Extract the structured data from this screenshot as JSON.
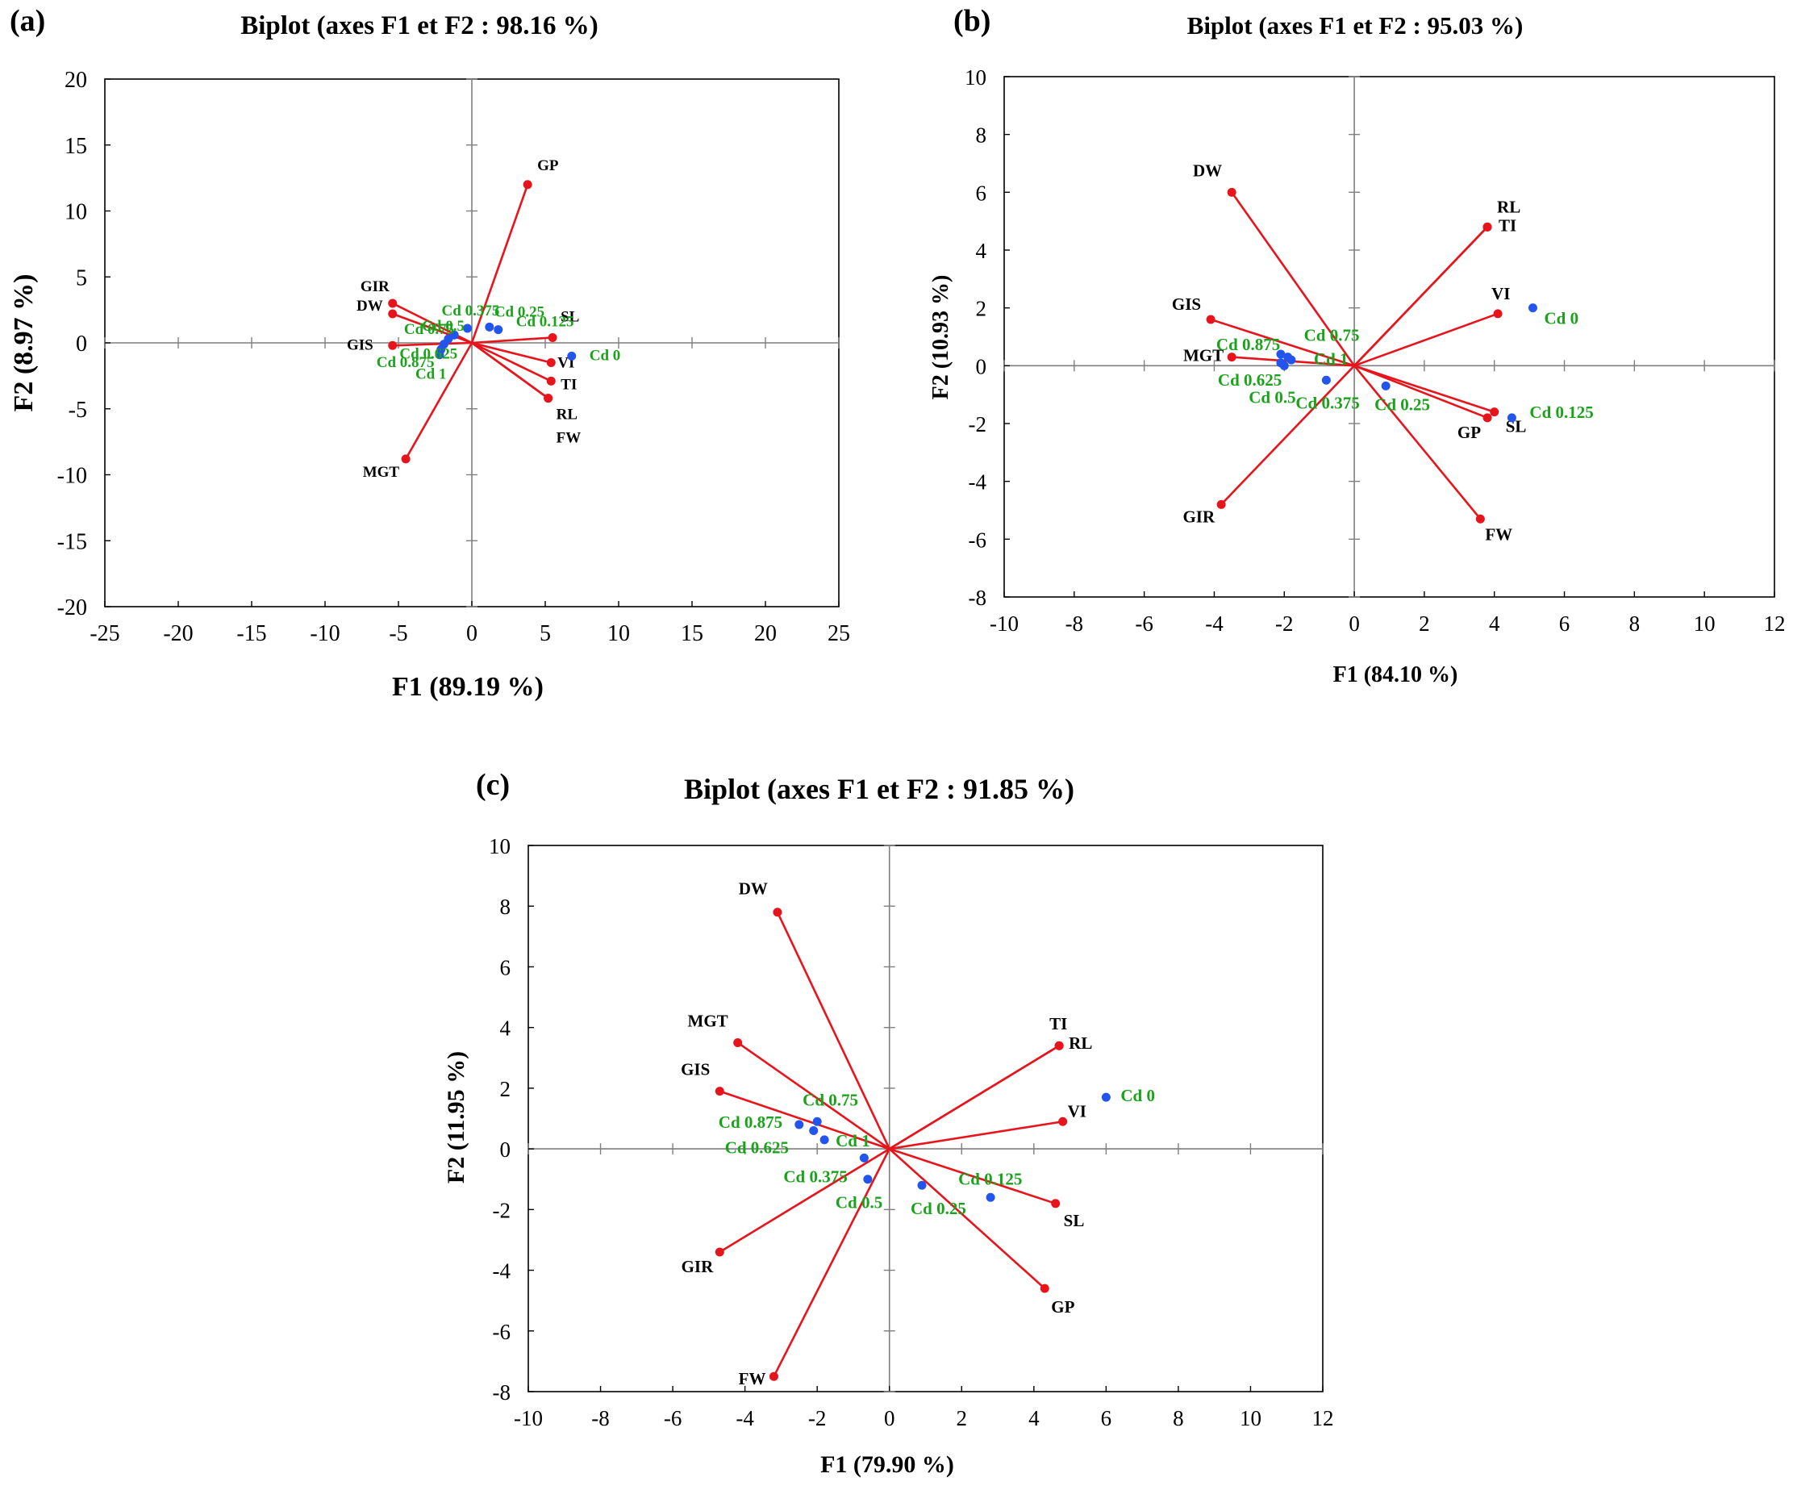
{
  "chart_data": [
    {
      "type": "scatter",
      "subtype": "biplot",
      "panel": "(a)",
      "title": "Biplot (axes F1 et F2 : 98.16 %)",
      "xlabel": "F1 (89.19 %)",
      "ylabel": "F2 (8.97 %)",
      "xlim": [
        -25,
        25
      ],
      "ylim": [
        -20,
        20
      ],
      "xticks": [
        -25,
        -20,
        -15,
        -10,
        -5,
        0,
        5,
        10,
        15,
        20,
        25
      ],
      "yticks": [
        -20,
        -15,
        -10,
        -5,
        0,
        5,
        10,
        15,
        20
      ],
      "variables": [
        {
          "name": "GP",
          "x": 3.8,
          "y": 12.0
        },
        {
          "name": "GIR",
          "x": -5.4,
          "y": 3.0
        },
        {
          "name": "DW",
          "x": -5.4,
          "y": 2.2
        },
        {
          "name": "GIS",
          "x": -5.4,
          "y": -0.2
        },
        {
          "name": "MGT",
          "x": -4.5,
          "y": -8.8
        },
        {
          "name": "SL",
          "x": 5.5,
          "y": 0.4
        },
        {
          "name": "VI",
          "x": 5.4,
          "y": -1.5
        },
        {
          "name": "TI",
          "x": 5.4,
          "y": -2.9
        },
        {
          "name": "RL",
          "x": 5.2,
          "y": -4.2
        },
        {
          "name": "FW",
          "x": 5.2,
          "y": -4.2
        }
      ],
      "observations": [
        {
          "name": "Cd 0",
          "x": 6.8,
          "y": -1.0
        },
        {
          "name": "Cd 0.125",
          "x": 1.8,
          "y": 1.0
        },
        {
          "name": "Cd 0.25",
          "x": 1.2,
          "y": 1.2
        },
        {
          "name": "Cd 0.375",
          "x": -0.3,
          "y": 1.1
        },
        {
          "name": "Cd 0.5",
          "x": -1.2,
          "y": 0.6
        },
        {
          "name": "Cd 0.75",
          "x": -1.6,
          "y": 0.3
        },
        {
          "name": "Cd 0.625",
          "x": -1.9,
          "y": -0.1
        },
        {
          "name": "Cd 0.875",
          "x": -2.1,
          "y": -0.5
        },
        {
          "name": "Cd 1",
          "x": -2.2,
          "y": -0.9
        }
      ]
    },
    {
      "type": "scatter",
      "subtype": "biplot",
      "panel": "(b)",
      "title": "Biplot (axes F1 et F2 : 95.03 %)",
      "xlabel": "F1 (84.10 %)",
      "ylabel": "F2 (10.93 %)",
      "xlim": [
        -10,
        12
      ],
      "ylim": [
        -8,
        10
      ],
      "xticks": [
        -10,
        -8,
        -6,
        -4,
        -2,
        0,
        2,
        4,
        6,
        8,
        10,
        12
      ],
      "yticks": [
        -8,
        -6,
        -4,
        -2,
        0,
        2,
        4,
        6,
        8,
        10
      ],
      "variables": [
        {
          "name": "DW",
          "x": -3.5,
          "y": 6.0
        },
        {
          "name": "RL",
          "x": 3.8,
          "y": 4.8
        },
        {
          "name": "TI",
          "x": 3.8,
          "y": 4.8
        },
        {
          "name": "VI",
          "x": 4.1,
          "y": 1.8
        },
        {
          "name": "GIS",
          "x": -4.1,
          "y": 1.6
        },
        {
          "name": "MGT",
          "x": -3.5,
          "y": 0.3
        },
        {
          "name": "SL",
          "x": 4.0,
          "y": -1.6
        },
        {
          "name": "GP",
          "x": 3.8,
          "y": -1.8
        },
        {
          "name": "GIR",
          "x": -3.8,
          "y": -4.8
        },
        {
          "name": "FW",
          "x": 3.6,
          "y": -5.3
        }
      ],
      "observations": [
        {
          "name": "Cd 0",
          "x": 5.1,
          "y": 2.0
        },
        {
          "name": "Cd 0.125",
          "x": 4.5,
          "y": -1.8
        },
        {
          "name": "Cd 0.25",
          "x": 0.9,
          "y": -0.7
        },
        {
          "name": "Cd 0.375",
          "x": -0.8,
          "y": -0.5
        },
        {
          "name": "Cd 0.75",
          "x": -1.9,
          "y": 0.3
        },
        {
          "name": "Cd 1",
          "x": -1.8,
          "y": 0.2
        },
        {
          "name": "Cd 0.875",
          "x": -2.1,
          "y": 0.4
        },
        {
          "name": "Cd 0.625",
          "x": -2.1,
          "y": 0.1
        },
        {
          "name": "Cd 0.5",
          "x": -2.0,
          "y": 0.0
        }
      ]
    },
    {
      "type": "scatter",
      "subtype": "biplot",
      "panel": "(c)",
      "title": "Biplot (axes F1 et F2 : 91.85 %)",
      "xlabel": "F1 (79.90 %)",
      "ylabel": "F2 (11.95 %)",
      "xlim": [
        -10,
        12
      ],
      "ylim": [
        -8,
        10
      ],
      "xticks": [
        -10,
        -8,
        -6,
        -4,
        -2,
        0,
        2,
        4,
        6,
        8,
        10,
        12
      ],
      "yticks": [
        -8,
        -6,
        -4,
        -2,
        0,
        2,
        4,
        6,
        8,
        10
      ],
      "variables": [
        {
          "name": "DW",
          "x": -3.1,
          "y": 7.8
        },
        {
          "name": "MGT",
          "x": -4.2,
          "y": 3.5
        },
        {
          "name": "GIS",
          "x": -4.7,
          "y": 1.9
        },
        {
          "name": "TI",
          "x": 4.7,
          "y": 3.4
        },
        {
          "name": "RL",
          "x": 4.7,
          "y": 3.4
        },
        {
          "name": "VI",
          "x": 4.8,
          "y": 0.9
        },
        {
          "name": "SL",
          "x": 4.6,
          "y": -1.8
        },
        {
          "name": "GP",
          "x": 4.3,
          "y": -4.6
        },
        {
          "name": "GIR",
          "x": -4.7,
          "y": -3.4
        },
        {
          "name": "FW",
          "x": -3.2,
          "y": -7.5
        }
      ],
      "observations": [
        {
          "name": "Cd 0",
          "x": 6.0,
          "y": 1.7
        },
        {
          "name": "Cd 0.75",
          "x": -2.0,
          "y": 0.9
        },
        {
          "name": "Cd 0.875",
          "x": -2.5,
          "y": 0.8
        },
        {
          "name": "Cd 0.625",
          "x": -2.1,
          "y": 0.6
        },
        {
          "name": "Cd 1",
          "x": -1.8,
          "y": 0.3
        },
        {
          "name": "Cd 0.375",
          "x": -0.7,
          "y": -0.3
        },
        {
          "name": "Cd 0.5",
          "x": -0.6,
          "y": -1.0
        },
        {
          "name": "Cd 0.25",
          "x": 0.9,
          "y": -1.2
        },
        {
          "name": "Cd 0.125",
          "x": 2.8,
          "y": -1.6
        }
      ]
    }
  ],
  "colors": {
    "variable": "#e8141b",
    "observation": "#2255ee",
    "observation_label": "#1aa31a",
    "axis": "#000000",
    "zero_line": "#7f7f7f"
  }
}
